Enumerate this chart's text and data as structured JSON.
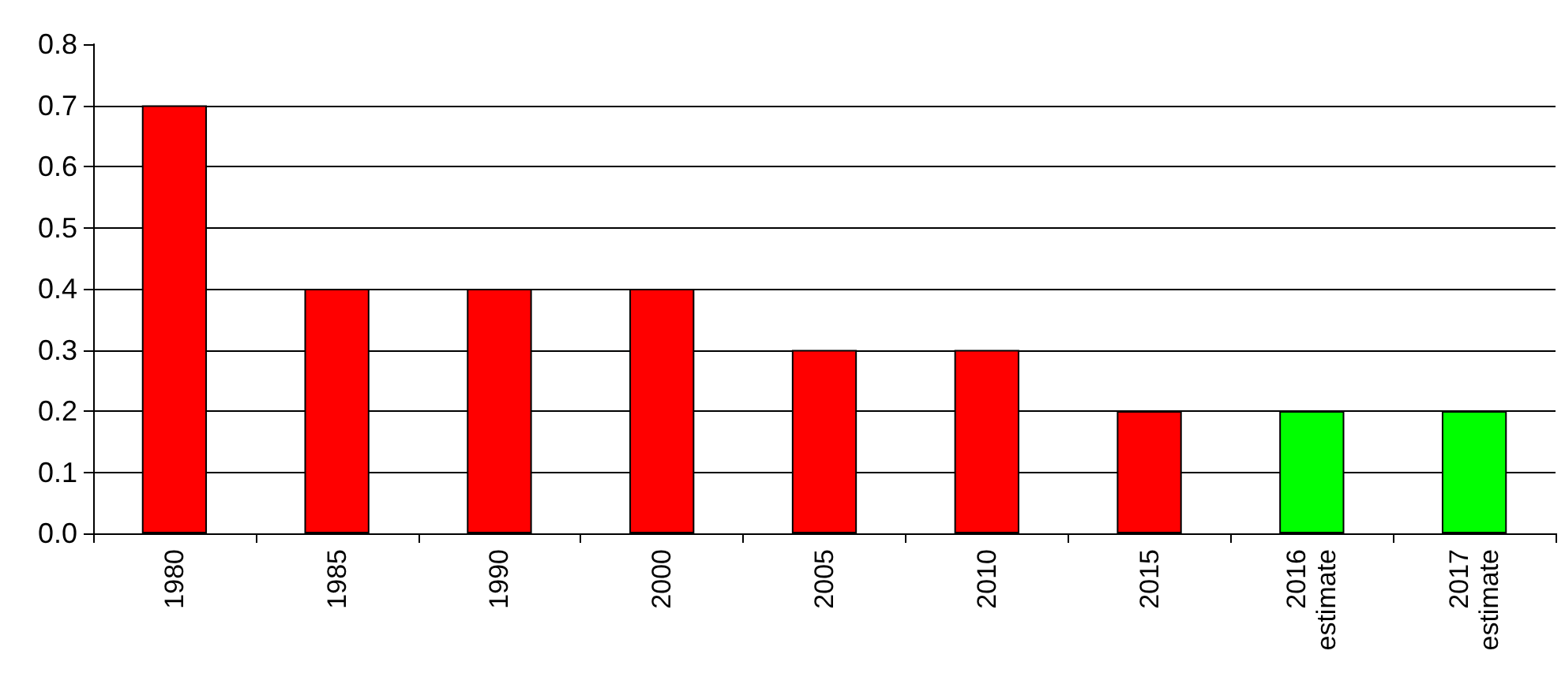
{
  "chart_data": {
    "type": "bar",
    "categories": [
      "1980",
      "1985",
      "1990",
      "2000",
      "2005",
      "2010",
      "2015",
      "2016 estimate",
      "2017 estimate"
    ],
    "values": [
      0.7,
      0.4,
      0.4,
      0.4,
      0.3,
      0.3,
      0.2,
      0.2,
      0.2
    ],
    "colors": [
      "#ff0000",
      "#ff0000",
      "#ff0000",
      "#ff0000",
      "#ff0000",
      "#ff0000",
      "#ff0000",
      "#00ff00",
      "#00ff00"
    ],
    "ylim": [
      0,
      0.8
    ],
    "yticks": [
      {
        "value": 0,
        "label": "0.0"
      },
      0.1,
      0.2,
      0.3,
      0.4,
      0.5,
      0.6,
      0.7,
      0.8
    ],
    "grid": "y"
  }
}
